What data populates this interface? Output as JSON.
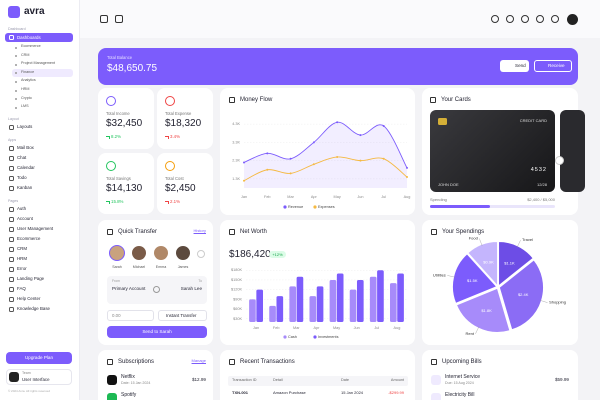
{
  "brand": "avra",
  "sidebar": {
    "sections": [
      {
        "label": "Dashboard",
        "items": [
          "Dashboards"
        ],
        "children": [
          "Ecommerce",
          "CRM",
          "Project Management",
          "Finance",
          "Analytics",
          "HRM",
          "Crypto",
          "LMS"
        ]
      },
      {
        "label": "Layout",
        "items": [
          "Layouts"
        ]
      },
      {
        "label": "Apps",
        "items": [
          "Mail Box",
          "Chat",
          "Calendar",
          "Todo",
          "Kanban"
        ]
      },
      {
        "label": "Pages",
        "items": [
          "Auth",
          "Account",
          "User Management",
          "Ecommerce",
          "CRM",
          "HRM",
          "Error",
          "Landing Page",
          "FAQ",
          "Help Center",
          "Knowledge Base"
        ]
      }
    ],
    "upgrade": "Upgrade Plan",
    "user": {
      "team": "Team",
      "name": "User Interface"
    },
    "copyright": "© 2024 Avra. All rights reserved"
  },
  "banner": {
    "label": "Total Balance",
    "amount": "$48,650.75",
    "send": "Send",
    "receive": "Receive"
  },
  "stats": [
    {
      "label": "Total Income",
      "value": "$32,450",
      "change": "8.2%",
      "color": "#22c55e",
      "icon_color": "#7c5cfc"
    },
    {
      "label": "Total Expense",
      "value": "$18,320",
      "change": "3.4%",
      "color": "#ef4444",
      "icon_color": "#ef4444"
    },
    {
      "label": "Total Savings",
      "value": "$14,130",
      "change": "15.8%",
      "color": "#22c55e",
      "icon_color": "#22c55e"
    },
    {
      "label": "Total Cost",
      "value": "$2,450",
      "change": "2.1%",
      "color": "#ef4444",
      "icon_color": "#f59e0b"
    }
  ],
  "money_flow": {
    "type": "line",
    "title": "Money Flow",
    "x": [
      "Jan",
      "Feb",
      "Mar",
      "Apr",
      "May",
      "Jun",
      "Jul",
      "Aug"
    ],
    "ylim": [
      800,
      4800
    ],
    "yticks": [
      {
        "value": 1300,
        "label": "1.3K"
      },
      {
        "value": 2300,
        "label": "2.3K"
      },
      {
        "value": 3300,
        "label": "3.3K"
      },
      {
        "value": 4300,
        "label": "4.3K"
      }
    ],
    "series": [
      {
        "name": "Revenue",
        "color": "#7c5cfc",
        "values": [
          2200,
          2700,
          2400,
          3300,
          4400,
          3700,
          4200,
          1900
        ]
      },
      {
        "name": "Expenses",
        "color": "#f5b942",
        "values": [
          1200,
          1800,
          1600,
          2100,
          2500,
          2300,
          2400,
          1400
        ]
      }
    ]
  },
  "cards": {
    "title": "Your Cards",
    "card_type": "CREDIT CARD",
    "number": "4532",
    "holder": "JOHN DOE",
    "expiry": "12/28",
    "spending_label": "Spending",
    "spending_text": "$2,400 / $5,000",
    "spending_value": 2400,
    "spending_limit": 5000
  },
  "transfer": {
    "title": "Quick Transfer",
    "link": "History",
    "contacts": [
      "Sarah",
      "Michael",
      "Emma",
      "James"
    ],
    "from": "From",
    "to": "To",
    "account": "Primary Account",
    "recipient": "Sarah Lee",
    "amount": "0.00",
    "method": "Instant Transfer",
    "button": "Send to Sarah"
  },
  "net_worth": {
    "type": "bar",
    "title": "Net Worth",
    "amount": "$186,420",
    "change": "+12%",
    "categories": [
      "Jan",
      "Feb",
      "Mar",
      "Apr",
      "May",
      "Jun",
      "Jul",
      "Aug"
    ],
    "ylim": [
      20000,
      190000
    ],
    "yticks": [
      {
        "value": 30000,
        "label": "$30K"
      },
      {
        "value": 60000,
        "label": "$60K"
      },
      {
        "value": 90000,
        "label": "$90K"
      },
      {
        "value": 120000,
        "label": "$120K"
      },
      {
        "value": 150000,
        "label": "$150K"
      },
      {
        "value": 180000,
        "label": "$180K"
      }
    ],
    "series": [
      {
        "name": "Cash",
        "color": "#a78bfa",
        "values": [
          90000,
          70000,
          130000,
          100000,
          150000,
          120000,
          160000,
          140000
        ]
      },
      {
        "name": "Investments",
        "color": "#7c5cfc",
        "values": [
          120000,
          100000,
          160000,
          130000,
          170000,
          150000,
          180000,
          170000
        ]
      }
    ]
  },
  "spendings": {
    "type": "pie",
    "title": "Your Spendings",
    "categories": [
      "Travel",
      "Shopping",
      "Rent",
      "Utilities",
      "Food"
    ],
    "values": [
      1100,
      2400,
      1800,
      1500,
      900
    ],
    "value_labels": [
      "$1.1K",
      "$2.4K",
      "$1.8K",
      "$1.5K",
      "$0.9K"
    ],
    "colors": [
      "#6d4de6",
      "#8b6cf5",
      "#a78bfa",
      "#7c5cfc",
      "#c4b5fd"
    ]
  },
  "subscriptions": {
    "title": "Subscriptions",
    "link": "Manage",
    "items": [
      {
        "name": "Netflix",
        "date": "Date: 15 Jan 2024",
        "amount": "$12.99"
      },
      {
        "name": "Spotify"
      }
    ]
  },
  "transactions": {
    "title": "Recent Transactions",
    "columns": [
      "Transaction ID",
      "Detail",
      "Date",
      "Amount"
    ],
    "rows": [
      [
        "TXN-001",
        "Amazon Purchase",
        "15 Jan 2024",
        "-$299.99"
      ]
    ]
  },
  "bills": {
    "title": "Upcoming Bills",
    "items": [
      {
        "name": "Internet Service",
        "due": "Due: 15 Aug 2024",
        "amount": "$59.99"
      },
      {
        "name": "Electricity Bill"
      }
    ]
  }
}
